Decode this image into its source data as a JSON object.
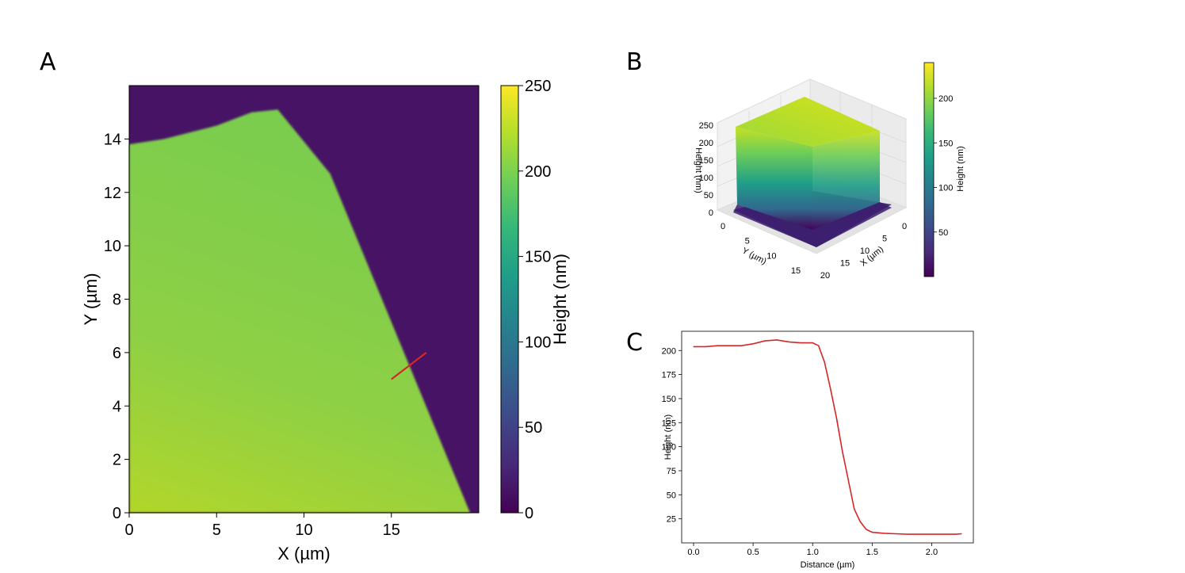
{
  "panel_labels": {
    "a": "A",
    "b": "B",
    "c": "C"
  },
  "colormap": [
    "#440154",
    "#482878",
    "#3e4989",
    "#31688e",
    "#26828e",
    "#1f9e89",
    "#35b779",
    "#6ece58",
    "#b5de2b",
    "#fde725"
  ],
  "line_color": "#d62728",
  "chart_data": [
    {
      "panel": "A",
      "type": "heatmap",
      "xlabel": "X (µm)",
      "ylabel": "Y (µm)",
      "xlim": [
        0,
        20
      ],
      "ylim": [
        0,
        16
      ],
      "xticks": [
        0,
        5,
        10,
        15
      ],
      "yticks": [
        0,
        2,
        4,
        6,
        8,
        10,
        12,
        14
      ],
      "colorbar": {
        "label": "Height (nm)",
        "range": [
          0,
          250
        ],
        "ticks": [
          0,
          50,
          100,
          150,
          200,
          250
        ]
      },
      "plateau_height_nm": 200,
      "background_height_nm": 10,
      "plateau_outline": [
        [
          0,
          0
        ],
        [
          19.5,
          0
        ],
        [
          11.5,
          12.7
        ],
        [
          8.5,
          15.1
        ],
        [
          7,
          15.0
        ],
        [
          5,
          14.5
        ],
        [
          2,
          14.0
        ],
        [
          0,
          13.8
        ]
      ],
      "profile_line": {
        "x": [
          15,
          17
        ],
        "y": [
          5,
          6
        ]
      }
    },
    {
      "panel": "B",
      "type": "surface",
      "xlabel": "X (µm)",
      "ylabel": "Y (µm)",
      "zlabel": "Height (nm)",
      "xticks": [
        0,
        5,
        10,
        15,
        20
      ],
      "yticks": [
        0,
        5,
        10,
        15
      ],
      "zticks": [
        0,
        50,
        100,
        150,
        200,
        250
      ],
      "colorbar": {
        "label": "Height (nm)",
        "range": [
          0,
          240
        ],
        "ticks": [
          50,
          100,
          150,
          200
        ]
      }
    },
    {
      "panel": "C",
      "type": "line",
      "xlabel": "Distance (µm)",
      "ylabel": "Height (nm)",
      "xlim": [
        -0.1,
        2.35
      ],
      "ylim": [
        0,
        220
      ],
      "xticks": [
        0.0,
        0.5,
        1.0,
        1.5,
        2.0
      ],
      "yticks": [
        25,
        50,
        75,
        100,
        125,
        150,
        175,
        200
      ],
      "x": [
        0.0,
        0.1,
        0.2,
        0.3,
        0.4,
        0.5,
        0.6,
        0.7,
        0.8,
        0.9,
        1.0,
        1.05,
        1.1,
        1.15,
        1.2,
        1.25,
        1.3,
        1.35,
        1.4,
        1.45,
        1.5,
        1.6,
        1.7,
        1.8,
        1.9,
        2.0,
        2.1,
        2.2,
        2.25
      ],
      "y": [
        204,
        204,
        205,
        205,
        205,
        207,
        210,
        211,
        209,
        208,
        208,
        205,
        188,
        160,
        130,
        95,
        65,
        35,
        22,
        14,
        11,
        10,
        9.5,
        9,
        9,
        9,
        9,
        9,
        9.5
      ]
    }
  ],
  "tick_text": {
    "a_x": [
      "0",
      "5",
      "10",
      "15"
    ],
    "a_y": [
      "0",
      "2",
      "4",
      "6",
      "8",
      "10",
      "12",
      "14"
    ],
    "a_cb": [
      "0",
      "50",
      "100",
      "150",
      "200",
      "250"
    ],
    "b_z": [
      "0",
      "50",
      "100",
      "150",
      "200",
      "250"
    ],
    "b_y": [
      "0",
      "5",
      "10",
      "15"
    ],
    "b_x": [
      "0",
      "5",
      "10",
      "15",
      "20"
    ],
    "b_cb": [
      "50",
      "100",
      "150",
      "200"
    ],
    "c_x": [
      "0.0",
      "0.5",
      "1.0",
      "1.5",
      "2.0"
    ],
    "c_y": [
      "25",
      "50",
      "75",
      "100",
      "125",
      "150",
      "175",
      "200"
    ]
  }
}
